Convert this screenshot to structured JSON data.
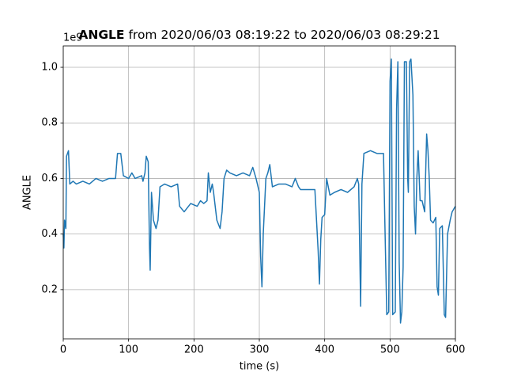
{
  "chart_data": {
    "type": "line",
    "title_bold": "ANGLE",
    "title_rest": "from 2020/06/03 08:19:22 to 2020/06/03 08:29:21",
    "offset_text": "1e9",
    "x_label": "time (s)",
    "y_label": "ANGLE",
    "color": "#1f77b4",
    "grid": true,
    "xlim": [
      0,
      600
    ],
    "ylim": [
      0.023,
      1.077
    ],
    "xticks": [
      0,
      100,
      200,
      300,
      400,
      500,
      600
    ],
    "yticks": [
      0.2,
      0.4,
      0.6,
      0.8,
      {
        "value": 1,
        "label": "1.0"
      }
    ],
    "x": [
      0,
      1,
      2,
      4,
      5,
      8,
      10,
      15,
      20,
      30,
      40,
      50,
      60,
      70,
      80,
      83,
      88,
      92,
      100,
      105,
      110,
      120,
      122,
      125,
      127,
      130,
      132,
      133,
      135,
      138,
      142,
      145,
      148,
      155,
      165,
      175,
      178,
      185,
      195,
      205,
      210,
      215,
      220,
      222,
      225,
      228,
      230,
      235,
      240,
      243,
      246,
      250,
      255,
      265,
      275,
      285,
      290,
      295,
      300,
      302,
      304,
      306,
      310,
      313,
      316,
      320,
      330,
      340,
      350,
      355,
      360,
      363,
      385,
      390,
      392,
      394,
      396,
      400,
      403,
      408,
      415,
      425,
      435,
      445,
      450,
      452,
      455,
      457,
      460,
      470,
      480,
      490,
      492,
      495,
      498,
      500,
      502,
      504,
      508,
      510,
      512,
      514,
      516,
      518,
      520,
      522,
      525,
      527,
      528,
      530,
      532,
      535,
      537,
      539,
      541,
      543,
      546,
      549,
      553,
      556,
      558,
      560,
      562,
      566,
      570,
      572,
      574,
      576,
      580,
      583,
      585,
      588,
      592,
      595,
      600
    ],
    "values": [
      0.4,
      0.35,
      0.45,
      0.42,
      0.68,
      0.7,
      0.58,
      0.59,
      0.58,
      0.59,
      0.58,
      0.6,
      0.59,
      0.6,
      0.6,
      0.69,
      0.69,
      0.61,
      0.6,
      0.62,
      0.6,
      0.61,
      0.59,
      0.62,
      0.68,
      0.66,
      0.35,
      0.27,
      0.55,
      0.45,
      0.42,
      0.45,
      0.57,
      0.58,
      0.57,
      0.58,
      0.5,
      0.48,
      0.51,
      0.5,
      0.52,
      0.51,
      0.52,
      0.62,
      0.55,
      0.58,
      0.55,
      0.45,
      0.42,
      0.48,
      0.6,
      0.63,
      0.62,
      0.61,
      0.62,
      0.61,
      0.64,
      0.6,
      0.55,
      0.32,
      0.21,
      0.4,
      0.6,
      0.62,
      0.65,
      0.57,
      0.58,
      0.58,
      0.57,
      0.6,
      0.57,
      0.56,
      0.56,
      0.34,
      0.22,
      0.38,
      0.46,
      0.47,
      0.6,
      0.54,
      0.55,
      0.56,
      0.55,
      0.57,
      0.6,
      0.58,
      0.14,
      0.58,
      0.69,
      0.7,
      0.69,
      0.69,
      0.45,
      0.11,
      0.12,
      0.95,
      1.03,
      0.11,
      0.12,
      0.85,
      1.02,
      0.3,
      0.08,
      0.12,
      0.28,
      1.02,
      1.02,
      0.6,
      0.55,
      1.02,
      1.03,
      0.9,
      0.5,
      0.4,
      0.6,
      0.7,
      0.52,
      0.52,
      0.48,
      0.76,
      0.7,
      0.6,
      0.45,
      0.44,
      0.46,
      0.21,
      0.18,
      0.42,
      0.43,
      0.11,
      0.1,
      0.4,
      0.45,
      0.48,
      0.5
    ]
  }
}
